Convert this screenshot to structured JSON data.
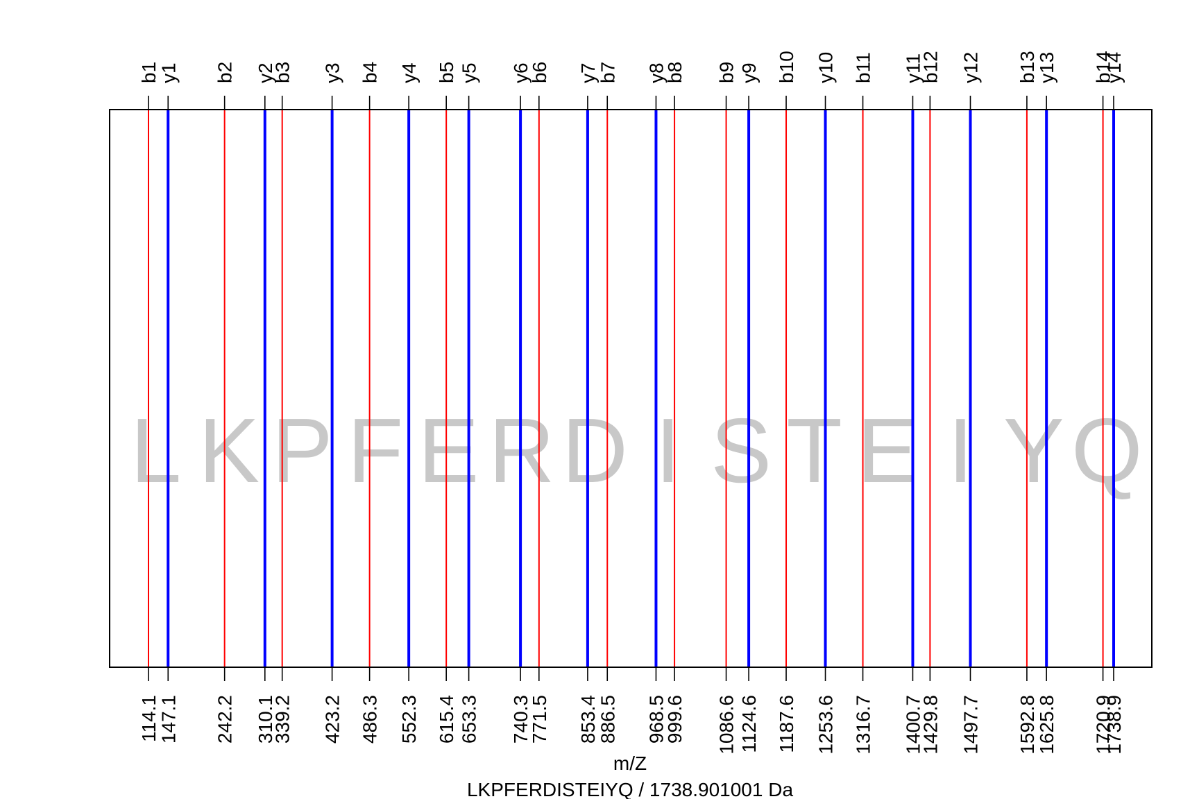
{
  "chart_data": {
    "type": "fragment-ion-plot",
    "xlabel": "m/Z",
    "subtitle": "LKPFERDISTEIYQ / 1738.901001 Da",
    "peptide_letters": [
      "L",
      "K",
      "P",
      "F",
      "E",
      "R",
      "D",
      "I",
      "S",
      "T",
      "E",
      "I",
      "Y",
      "Q"
    ],
    "xlim": [
      114.1,
      1738.9
    ],
    "b_ions": {
      "color": "#ff0000",
      "labels": [
        "b1",
        "b2",
        "b3",
        "b4",
        "b5",
        "b6",
        "b7",
        "b8",
        "b9",
        "b10",
        "b11",
        "b12",
        "b13",
        "b14"
      ],
      "values": [
        114.1,
        242.2,
        339.2,
        486.3,
        615.4,
        771.5,
        886.5,
        999.6,
        1086.6,
        1187.6,
        1316.7,
        1429.8,
        1592.8,
        1720.9
      ],
      "value_labels": [
        "114.1",
        "242.2",
        "339.2",
        "486.3",
        "615.4",
        "771.5",
        "886.5",
        "999.6",
        "1086.6",
        "1187.6",
        "1316.7",
        "1429.8",
        "1592.8",
        "1720.9"
      ]
    },
    "y_ions": {
      "color": "#0000ff",
      "labels": [
        "y1",
        "y2",
        "y3",
        "y4",
        "y5",
        "y6",
        "y7",
        "y8",
        "y9",
        "y10",
        "y11",
        "y12",
        "y13",
        "y14"
      ],
      "values": [
        147.1,
        310.1,
        423.2,
        552.3,
        653.3,
        740.3,
        853.4,
        968.5,
        1124.6,
        1253.6,
        1400.7,
        1497.7,
        1625.8,
        1738.9
      ],
      "value_labels": [
        "147.1",
        "310.1",
        "423.2",
        "552.3",
        "653.3",
        "740.3",
        "853.4",
        "968.5",
        "1124.6",
        "1253.6",
        "1400.7",
        "1497.7",
        "1625.8",
        "1738.9"
      ]
    },
    "colors": {
      "watermark": "#c8c8c8",
      "frame": "#000000"
    },
    "grid": false,
    "legend": "none"
  }
}
